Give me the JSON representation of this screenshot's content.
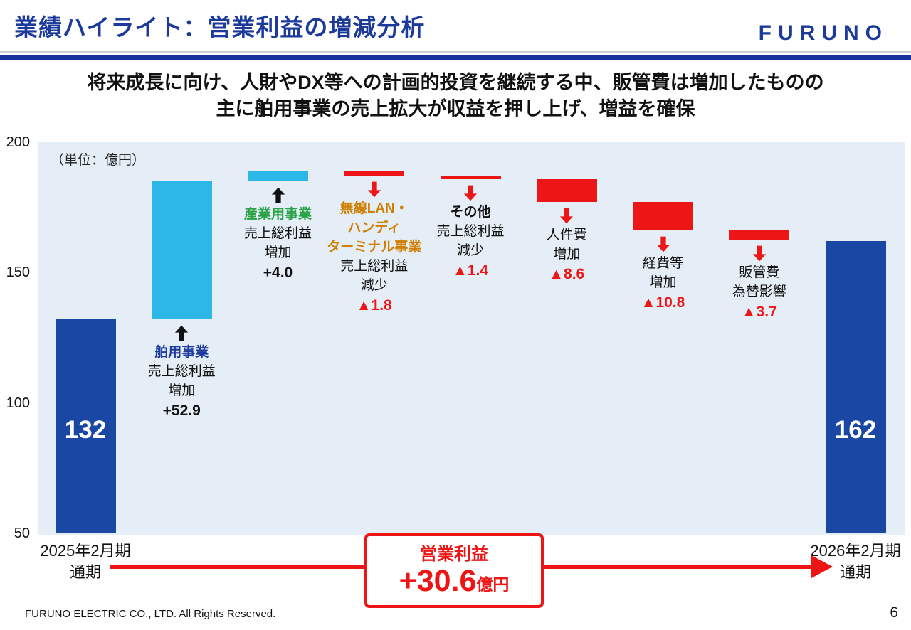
{
  "header": {
    "title": "業績ハイライト：営業利益の増減分析",
    "logo_text": "FURUNO"
  },
  "subtitle": {
    "line1": "将来成長に向け、人財やDX等への計画的投資を継続する中、販管費は増加したものの",
    "line2": "主に舶用事業の売上拡大が収益を押し上げ、増益を確保"
  },
  "chart_data": {
    "type": "bar",
    "subtype": "waterfall",
    "unit_label": "（単位：億円）",
    "ylim": [
      50,
      200
    ],
    "yticks": [
      200,
      150,
      100,
      50
    ],
    "grid": false,
    "bars": [
      {
        "name": "fy2025-total",
        "kind": "total",
        "start": 50,
        "end": 132,
        "value_label": "132",
        "color": "navy",
        "axis_label_lines": [
          "2025年2月期",
          "通期"
        ]
      },
      {
        "name": "marine-business",
        "kind": "increase",
        "delta": 52.9,
        "start": 132,
        "end": 184.9,
        "color": "cyan",
        "arrow": "up",
        "annotation": [
          {
            "text": "舶用事業",
            "style": "navy"
          },
          {
            "text": "売上総利益",
            "style": "plain"
          },
          {
            "text": "増加",
            "style": "plain"
          },
          {
            "text": "+52.9",
            "style": "value-black"
          }
        ]
      },
      {
        "name": "industrial-business",
        "kind": "increase",
        "delta": 4.0,
        "start": 184.9,
        "end": 188.9,
        "color": "cyan",
        "arrow": "up",
        "annotation": [
          {
            "text": "産業用事業",
            "style": "green"
          },
          {
            "text": "売上総利益",
            "style": "plain"
          },
          {
            "text": "増加",
            "style": "plain"
          },
          {
            "text": "+4.0",
            "style": "value-black"
          }
        ]
      },
      {
        "name": "wireless-lan-handy-terminal",
        "kind": "decrease",
        "delta": -1.8,
        "start": 188.9,
        "end": 187.1,
        "color": "red",
        "arrow": "down",
        "annotation": [
          {
            "text": "無線LAN・",
            "style": "orange"
          },
          {
            "text": "ハンディ",
            "style": "orange"
          },
          {
            "text": "ターミナル事業",
            "style": "orange"
          },
          {
            "text": "売上総利益",
            "style": "plain"
          },
          {
            "text": "減少",
            "style": "plain"
          },
          {
            "text": "▲1.8",
            "style": "value-red"
          }
        ]
      },
      {
        "name": "others",
        "kind": "decrease",
        "delta": -1.4,
        "start": 187.1,
        "end": 185.7,
        "color": "red",
        "arrow": "down",
        "annotation": [
          {
            "text": "その他",
            "style": "bold"
          },
          {
            "text": "売上総利益",
            "style": "plain"
          },
          {
            "text": "減少",
            "style": "plain"
          },
          {
            "text": "▲1.4",
            "style": "value-red"
          }
        ]
      },
      {
        "name": "personnel-costs",
        "kind": "decrease",
        "delta": -8.6,
        "start": 185.7,
        "end": 177.1,
        "color": "red",
        "arrow": "down",
        "annotation": [
          {
            "text": "人件費",
            "style": "plain"
          },
          {
            "text": "増加",
            "style": "plain"
          },
          {
            "text": "▲8.6",
            "style": "value-red"
          }
        ]
      },
      {
        "name": "expenses",
        "kind": "decrease",
        "delta": -10.8,
        "start": 177.1,
        "end": 166.3,
        "color": "red",
        "arrow": "down",
        "annotation": [
          {
            "text": "経費等",
            "style": "plain"
          },
          {
            "text": "増加",
            "style": "plain"
          },
          {
            "text": "▲10.8",
            "style": "value-red"
          }
        ]
      },
      {
        "name": "sga-forex-impact",
        "kind": "decrease",
        "delta": -3.7,
        "start": 166.3,
        "end": 162.6,
        "color": "red",
        "arrow": "down",
        "annotation": [
          {
            "text": "販管費",
            "style": "plain"
          },
          {
            "text": "為替影響",
            "style": "plain"
          },
          {
            "text": "▲3.7",
            "style": "value-red"
          }
        ]
      },
      {
        "name": "fy2026-total",
        "kind": "total",
        "start": 50,
        "end": 162,
        "value_label": "162",
        "color": "navy",
        "axis_label_lines": [
          "2026年2月期",
          "通期"
        ]
      }
    ]
  },
  "summary": {
    "label": "営業利益",
    "value": "+30.6",
    "unit": "億円"
  },
  "footer": {
    "copyright": "FURUNO ELECTRIC CO., LTD. All Rights Reserved.",
    "page_number": "6"
  },
  "colors": {
    "title_navy": "#1b3a9b",
    "bar_navy": "#1a47a3",
    "bar_cyan": "#2cb7e8",
    "red": "#ed1515",
    "green": "#27a245",
    "orange": "#d07f00",
    "chart_bg": "#e5eef7",
    "divider_silver": "#c9ced8"
  }
}
